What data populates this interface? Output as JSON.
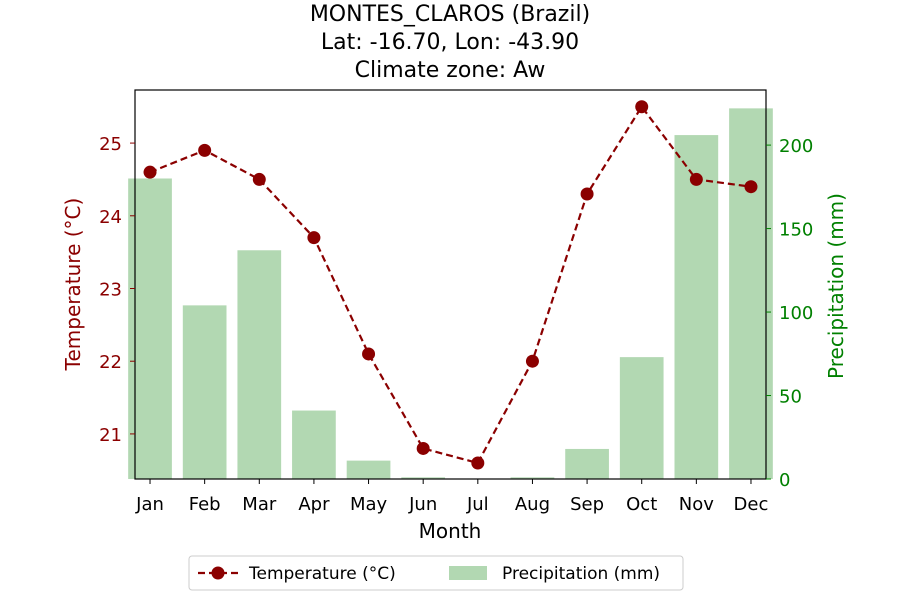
{
  "chart_data": {
    "type": "bar+line",
    "title_lines": [
      "MONTES_CLAROS (Brazil)",
      "Lat: -16.70, Lon: -43.90",
      "Climate zone: Aw"
    ],
    "xlabel": "Month",
    "ylabel_left": "Temperature (°C)",
    "ylabel_right": "Precipitation (mm)",
    "categories": [
      "Jan",
      "Feb",
      "Mar",
      "Apr",
      "May",
      "Jun",
      "Jul",
      "Aug",
      "Sep",
      "Oct",
      "Nov",
      "Dec"
    ],
    "temperature": {
      "name": "Temperature (°C)",
      "values": [
        24.6,
        24.9,
        24.5,
        23.7,
        22.1,
        20.8,
        20.6,
        22.0,
        24.3,
        25.5,
        24.5,
        24.4
      ]
    },
    "precipitation": {
      "name": "Precipitation (mm)",
      "values": [
        180,
        104,
        137,
        41,
        11,
        1,
        0,
        1,
        18,
        73,
        206,
        222
      ]
    },
    "ylim_left": [
      20.38,
      25.73
    ],
    "ylim_right": [
      0,
      233
    ],
    "yticks_left": [
      21,
      22,
      23,
      24,
      25
    ],
    "yticks_right": [
      0,
      50,
      100,
      150,
      200
    ],
    "legend_position": "bottom-center",
    "grid": false,
    "colors": {
      "temperature": "#8b0000",
      "precipitation": "#b2d8b2",
      "left_axis_text": "#8b0000",
      "right_axis_text": "#008000"
    }
  }
}
